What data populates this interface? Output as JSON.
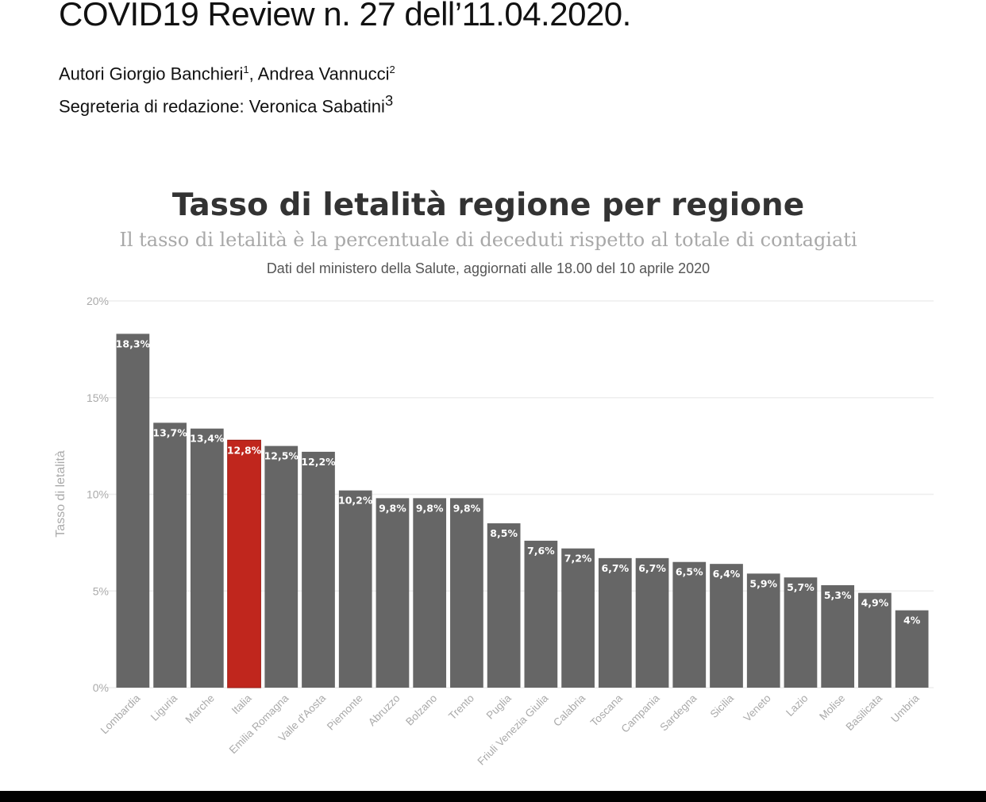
{
  "document": {
    "title": "COVID19 Review n. 27 dell’11.04.2020.",
    "authors_label": "Autori Giorgio Banchieri",
    "author1_sup": "1",
    "author2": ", Andrea Vannucci",
    "author2_sup": "2",
    "secretary": "Segreteria di redazione: Veronica Sabatini",
    "secretary_sup": "3"
  },
  "chart_data": {
    "type": "bar",
    "title": "Tasso di letalità regione per regione",
    "subtitle": "Il tasso di letalità è la percentuale di deceduti rispetto al totale di contagiati",
    "source": "Dati del ministero della Salute, aggiornati alle 18.00 del 10 aprile 2020",
    "ylabel": "Tasso di letalità",
    "xlabel": "",
    "ylim": [
      0,
      20
    ],
    "yticks": [
      0,
      5,
      10,
      15,
      20
    ],
    "ytick_labels": [
      "0%",
      "5%",
      "10%",
      "15%",
      "20%"
    ],
    "grid": true,
    "categories": [
      "Lombardia",
      "Liguria",
      "Marche",
      "Italia",
      "Emilia Romagna",
      "Valle d'Aosta",
      "Piemonte",
      "Abruzzo",
      "Bolzano",
      "Trento",
      "Puglia",
      "Friuli Venezia Giulia",
      "Calabria",
      "Toscana",
      "Campania",
      "Sardegna",
      "Sicilia",
      "Veneto",
      "Lazio",
      "Molise",
      "Basilicata",
      "Umbria"
    ],
    "values": [
      18.3,
      13.7,
      13.4,
      12.8,
      12.5,
      12.2,
      10.2,
      9.8,
      9.8,
      9.8,
      8.5,
      7.6,
      7.2,
      6.7,
      6.7,
      6.5,
      6.4,
      5.9,
      5.7,
      5.3,
      4.9,
      4.0
    ],
    "data_labels": [
      "18,3%",
      "13,7%",
      "13,4%",
      "12,8%",
      "12,5%",
      "12,2%",
      "10,2%",
      "9,8%",
      "9,8%",
      "9,8%",
      "8,5%",
      "7,6%",
      "7,2%",
      "6,7%",
      "6,7%",
      "6,5%",
      "6,4%",
      "5,9%",
      "5,7%",
      "5,3%",
      "4,9%",
      "4%"
    ],
    "highlight": "Italia",
    "colors": {
      "bar": "#666666",
      "highlight": "#c0261d",
      "grid": "#eeeeee",
      "tick": "#aaaaaa",
      "label": "#ffffff"
    }
  }
}
